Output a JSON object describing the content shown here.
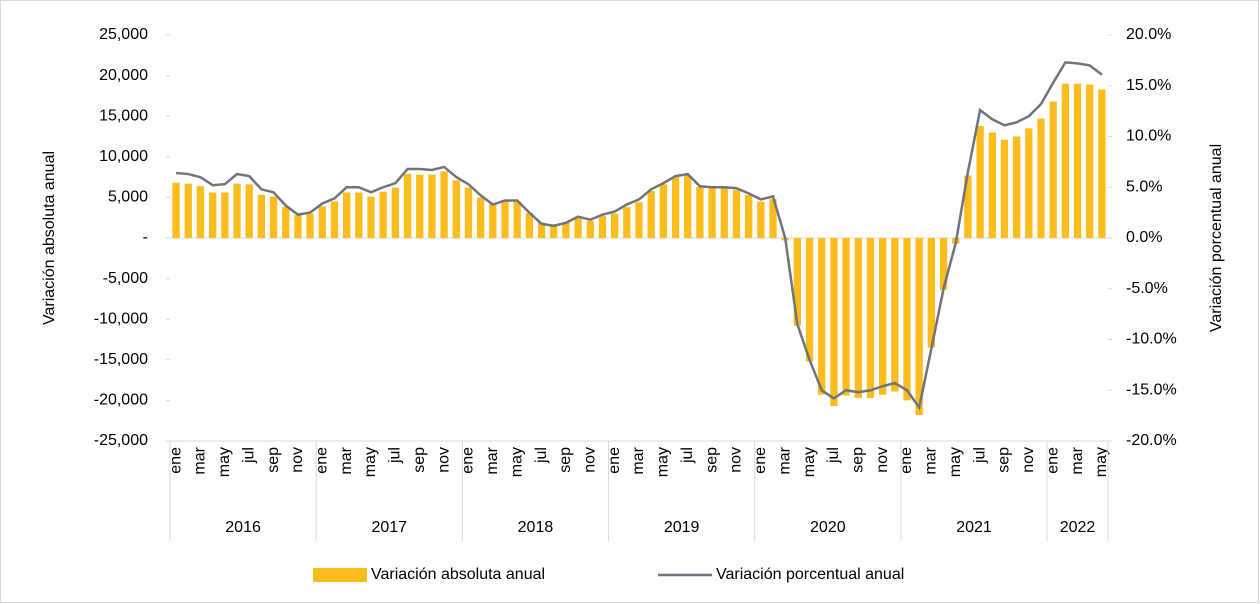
{
  "chart_data": {
    "type": "bar_line",
    "categories": [
      "ene",
      null,
      "mar",
      null,
      "may",
      null,
      "jul",
      null,
      "sep",
      null,
      "nov",
      null,
      "ene",
      null,
      "mar",
      null,
      "may",
      null,
      "jul",
      null,
      "sep",
      null,
      "nov",
      null,
      "ene",
      null,
      "mar",
      null,
      "may",
      null,
      "jul",
      null,
      "sep",
      null,
      "nov",
      null,
      "ene",
      null,
      "mar",
      null,
      "may",
      null,
      "jul",
      null,
      "sep",
      null,
      "nov",
      null,
      "ene",
      null,
      "mar",
      null,
      "may",
      null,
      "jul",
      null,
      "sep",
      null,
      "nov",
      null,
      "ene",
      null,
      "mar",
      null,
      "may",
      null,
      "jul",
      null,
      "sep",
      null,
      "nov",
      null,
      "ene",
      null,
      "mar",
      null,
      "may"
    ],
    "years": [
      "2016",
      null,
      null,
      null,
      null,
      null,
      null,
      null,
      null,
      null,
      null,
      null,
      "2017",
      null,
      null,
      null,
      null,
      null,
      null,
      null,
      null,
      null,
      null,
      null,
      "2018",
      null,
      null,
      null,
      null,
      null,
      null,
      null,
      null,
      null,
      null,
      null,
      "2019",
      null,
      null,
      null,
      null,
      null,
      null,
      null,
      null,
      null,
      null,
      null,
      "2020",
      null,
      null,
      null,
      null,
      null,
      null,
      null,
      null,
      null,
      null,
      null,
      "2021",
      null,
      null,
      null,
      null,
      null,
      null,
      null,
      null,
      null,
      null,
      null,
      "2022",
      null,
      null,
      null,
      null
    ],
    "series": [
      {
        "name": "Variación absoluta anual",
        "kind": "bar",
        "color": "#fbbc1e",
        "axis": "y",
        "values": [
          6800,
          6700,
          6400,
          5600,
          5600,
          6700,
          6600,
          5300,
          5100,
          3800,
          2800,
          3000,
          3900,
          4500,
          5600,
          5600,
          5100,
          5700,
          6200,
          7900,
          7800,
          7800,
          8200,
          7100,
          6200,
          5000,
          4200,
          4500,
          4500,
          3100,
          1900,
          1700,
          1900,
          2400,
          2100,
          2700,
          3000,
          3800,
          4400,
          5800,
          6600,
          7500,
          7700,
          6300,
          6100,
          6100,
          5900,
          5300,
          4500,
          4800,
          -300,
          -10800,
          -15200,
          -19300,
          -20700,
          -19400,
          -19700,
          -19700,
          -19300,
          -18900,
          -20000,
          -21800,
          -13500,
          -6400,
          -700,
          7700,
          13800,
          13000,
          12100,
          12500,
          13500,
          14700,
          16800,
          19000,
          19000,
          18900,
          18300
        ]
      },
      {
        "name": "Variación porcentual anual",
        "kind": "line",
        "color": "#6f747b",
        "axis": "y2",
        "values": [
          6.4,
          6.3,
          6.0,
          5.2,
          5.3,
          6.3,
          6.1,
          4.8,
          4.5,
          3.2,
          2.3,
          2.5,
          3.4,
          3.9,
          5.0,
          5.0,
          4.5,
          5.0,
          5.4,
          6.8,
          6.8,
          6.7,
          7.0,
          6.0,
          5.3,
          4.2,
          3.3,
          3.7,
          3.7,
          2.5,
          1.4,
          1.2,
          1.5,
          2.1,
          1.8,
          2.3,
          2.6,
          3.3,
          3.8,
          4.8,
          5.4,
          6.1,
          6.3,
          5.1,
          5.0,
          5.0,
          4.9,
          4.4,
          3.8,
          4.1,
          0.0,
          -8.5,
          -12.0,
          -15.0,
          -15.8,
          -15.0,
          -15.2,
          -15.0,
          -14.6,
          -14.3,
          -15.0,
          -16.7,
          -10.9,
          -5.0,
          -0.5,
          6.5,
          12.6,
          11.7,
          11.1,
          11.4,
          12.0,
          13.2,
          15.3,
          17.3,
          17.2,
          17.0,
          16.1
        ]
      }
    ],
    "ylabel": "Variación absoluta anual",
    "y2label": "Variación porcentual anual",
    "ylim": [
      -25000,
      25000
    ],
    "yticks": [
      {
        "value": -25000,
        "label": "-25,000"
      },
      {
        "value": -20000,
        "label": "-20,000"
      },
      {
        "value": -15000,
        "label": "-15,000"
      },
      {
        "value": -10000,
        "label": "-10,000"
      },
      {
        "value": -5000,
        "label": "-5,000"
      },
      {
        "value": 0,
        "label": "-"
      },
      {
        "value": 5000,
        "label": "5,000"
      },
      {
        "value": 10000,
        "label": "10,000"
      },
      {
        "value": 15000,
        "label": "15,000"
      },
      {
        "value": 20000,
        "label": "20,000"
      },
      {
        "value": 25000,
        "label": "25,000"
      }
    ],
    "y2lim": [
      -20,
      20
    ],
    "y2ticks": [
      {
        "value": -20,
        "label": "-20.0%"
      },
      {
        "value": -15,
        "label": "-15.0%"
      },
      {
        "value": -10,
        "label": "-10.0%"
      },
      {
        "value": -5,
        "label": "-5.0%"
      },
      {
        "value": 0,
        "label": "0.0%"
      },
      {
        "value": 5,
        "label": "5.0%"
      },
      {
        "value": 10,
        "label": "10.0%"
      },
      {
        "value": 15,
        "label": "15.0%"
      },
      {
        "value": 20,
        "label": "20.0%"
      }
    ],
    "grid": false,
    "legend": "bottom"
  }
}
